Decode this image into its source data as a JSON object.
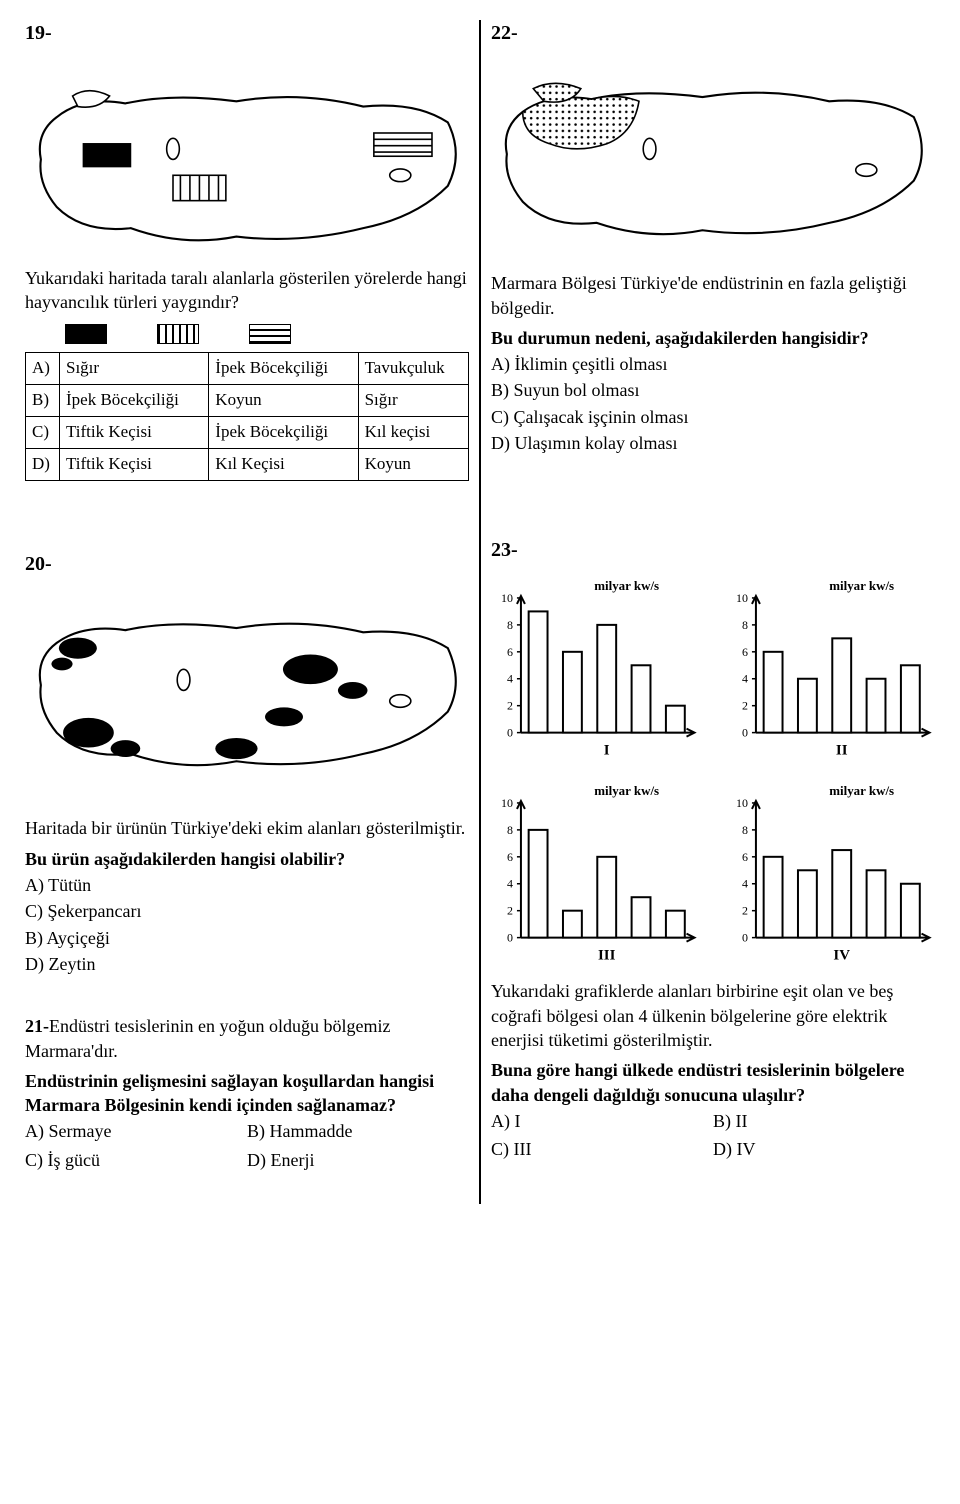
{
  "left": {
    "q19": {
      "num": "19-",
      "text": "Yukarıdaki haritada taralı alanlarla gösterilen yörelerde hangi hayvancılık türleri yaygındır?",
      "table": {
        "rows": [
          [
            "A)",
            "Sığır",
            "İpek Böcekçiliği",
            "Tavukçuluk"
          ],
          [
            "B)",
            "İpek Böcekçiliği",
            "Koyun",
            "Sığır"
          ],
          [
            "C)",
            "Tiftik Keçisi",
            "İpek Böcekçiliği",
            "Kıl keçisi"
          ],
          [
            "D)",
            "Tiftik Keçisi",
            "Kıl Keçisi",
            "Koyun"
          ]
        ]
      }
    },
    "q20": {
      "num": "20-",
      "text1": "Haritada bir ürünün Türkiye'deki ekim alanları gösterilmiştir.",
      "text2": "Bu ürün aşağıdakilerden hangisi olabilir?",
      "opts": [
        "A) Tütün",
        "C) Şekerpancarı",
        "B) Ayçiçeği",
        "D) Zeytin"
      ]
    },
    "q21": {
      "lead": "21-",
      "text1": "Endüstri tesislerinin en yoğun olduğu bölgemiz Marmara'dır.",
      "text2": "Endüstrinin gelişmesini sağlayan koşullardan hangisi Marmara Bölgesinin kendi içinden sağlanamaz?",
      "opts": [
        "A) Sermaye",
        "B) Hammadde",
        "C) İş gücü",
        "D) Enerji"
      ]
    }
  },
  "right": {
    "q22": {
      "num": "22-",
      "text1": "Marmara Bölgesi Türkiye'de endüstrinin en fazla geliştiği bölgedir.",
      "text2": "Bu durumun nedeni, aşağıdakilerden hangisidir?",
      "opts": [
        "A) İklimin çeşitli olması",
        "B) Suyun bol olması",
        "C) Çalışacak işçinin olması",
        "D) Ulaşımın kolay olması"
      ]
    },
    "q23": {
      "num": "23-",
      "chart_common": {
        "ylabel": "milyar kw/s",
        "ymax": 10,
        "yticks": [
          0,
          2,
          4,
          6,
          8,
          10
        ],
        "bar_color": "#ffffff",
        "bar_stroke": "#000000",
        "bar_width": 0.55,
        "axis_fontsize": 12,
        "label_fontsize": 13
      },
      "charts": [
        {
          "label": "I",
          "values": [
            9,
            6,
            8,
            5,
            2
          ]
        },
        {
          "label": "II",
          "values": [
            6,
            4,
            7,
            4,
            5
          ]
        },
        {
          "label": "III",
          "values": [
            8,
            2,
            6,
            3,
            2
          ]
        },
        {
          "label": "IV",
          "values": [
            6,
            5,
            6.5,
            5,
            4
          ]
        }
      ],
      "text1": "Yukarıdaki grafiklerde alanları birbirine eşit olan ve beş coğrafi bölgesi olan 4 ülkenin bölgelerine göre elektrik enerjisi tüketimi gösterilmiştir.",
      "text2": "Buna göre hangi ülkede endüstri tesislerinin bölgelere daha dengeli dağıldığı sonucuna ulaşılır?",
      "opts": [
        "A) I",
        "B) II",
        "C) III",
        "D) IV"
      ]
    }
  }
}
